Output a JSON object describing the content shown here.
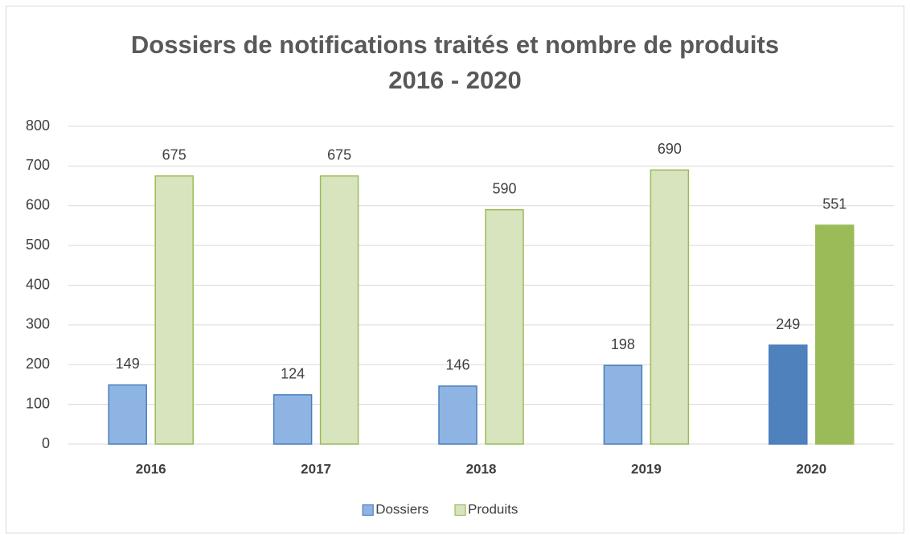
{
  "chart_data": {
    "type": "bar",
    "title": [
      "Dossiers de notifications traités et nombre de produits",
      "2016 - 2020"
    ],
    "categories": [
      "2016",
      "2017",
      "2018",
      "2019",
      "2020"
    ],
    "series": [
      {
        "name": "Dossiers",
        "color": "#8eb4e3",
        "stroke": "#4a7ebb",
        "colors": [
          "#8eb4e3",
          "#8eb4e3",
          "#8eb4e3",
          "#8eb4e3",
          "#4f81bd"
        ],
        "values": [
          149,
          124,
          146,
          198,
          249
        ]
      },
      {
        "name": "Produits",
        "color": "#d7e4bd",
        "stroke": "#9bbb59",
        "colors": [
          "#d7e4bd",
          "#d7e4bd",
          "#d7e4bd",
          "#d7e4bd",
          "#9bbb59"
        ],
        "values": [
          675,
          675,
          590,
          690,
          551
        ]
      }
    ],
    "ylim": [
      0,
      800
    ],
    "yticks": [
      0,
      100,
      200,
      300,
      400,
      500,
      600,
      700,
      800
    ],
    "grid": true,
    "legend": "bottom"
  }
}
